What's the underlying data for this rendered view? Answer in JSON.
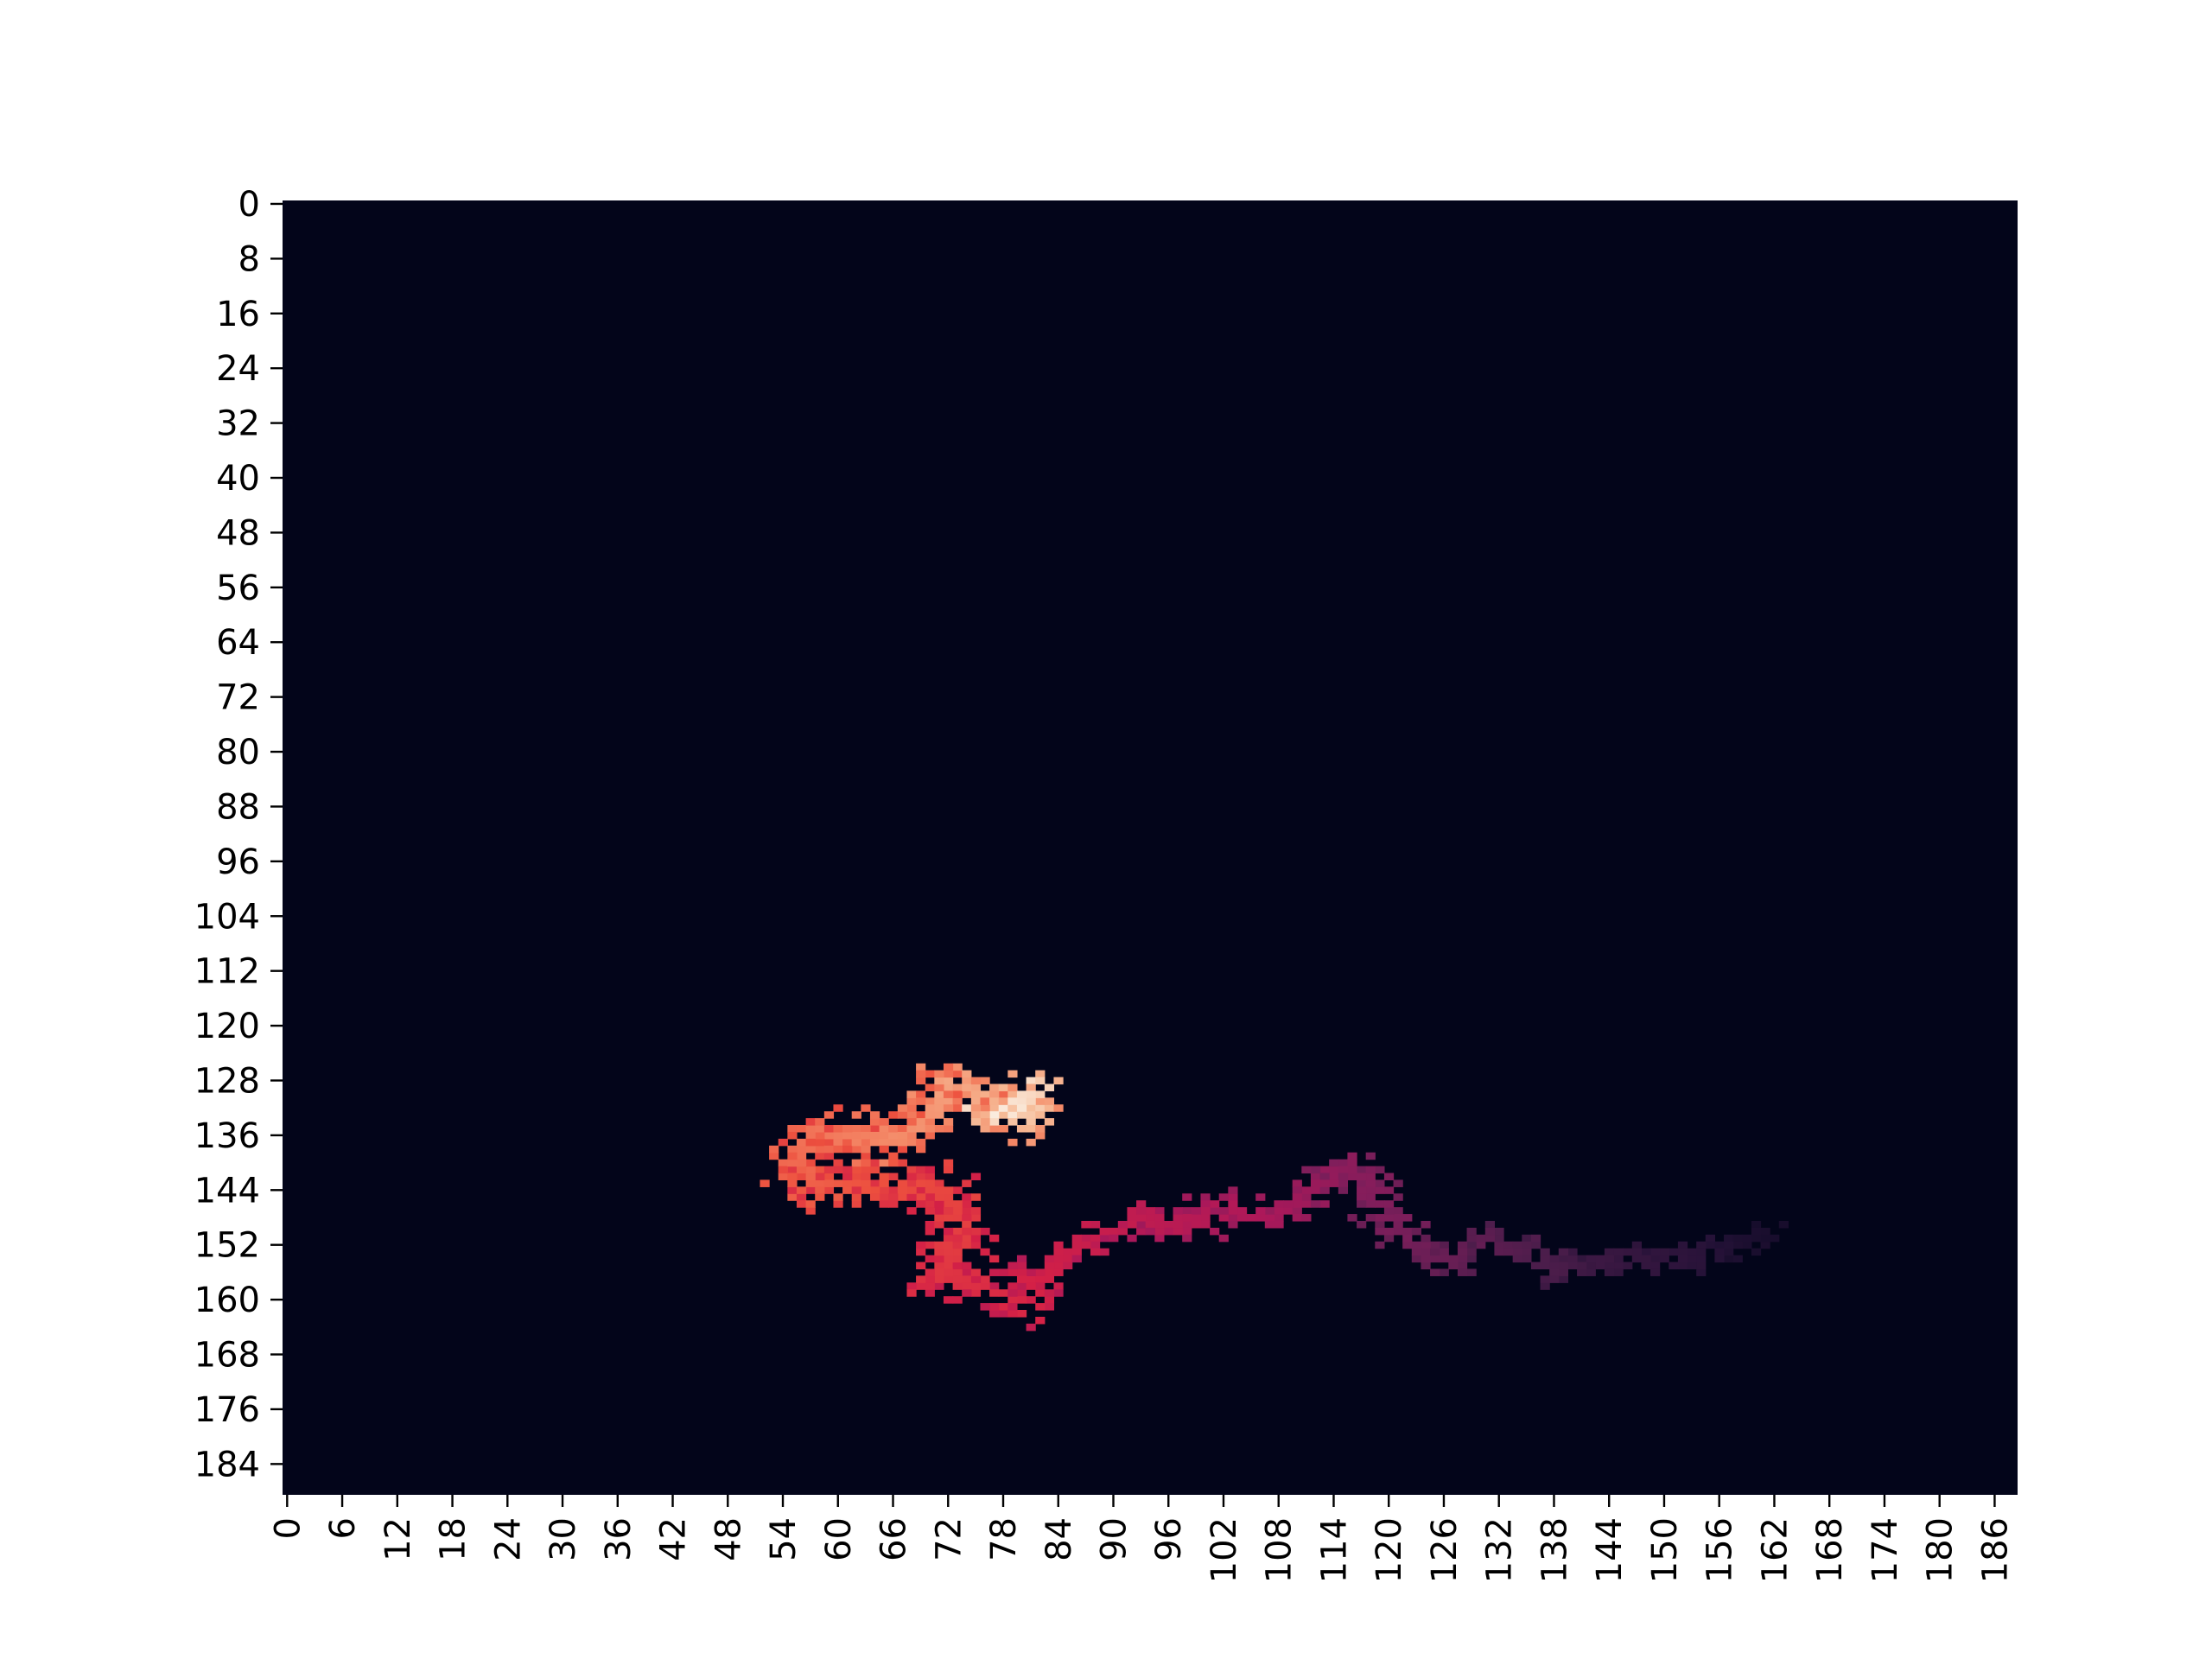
{
  "chart_data": {
    "type": "heatmap",
    "title": "",
    "xlabel": "",
    "ylabel": "",
    "n_rows": 189,
    "n_cols": 189,
    "xlim": [
      0,
      189
    ],
    "ylim": [
      0,
      189
    ],
    "x_tick_labels": [
      "0",
      "6",
      "12",
      "18",
      "24",
      "30",
      "36",
      "42",
      "48",
      "54",
      "60",
      "66",
      "72",
      "78",
      "84",
      "90",
      "96",
      "102",
      "108",
      "114",
      "120",
      "126",
      "132",
      "138",
      "144",
      "150",
      "156",
      "162",
      "168",
      "174",
      "180",
      "186"
    ],
    "y_tick_labels": [
      "0",
      "8",
      "16",
      "24",
      "32",
      "40",
      "48",
      "56",
      "64",
      "72",
      "80",
      "88",
      "96",
      "104",
      "112",
      "120",
      "128",
      "136",
      "144",
      "152",
      "160",
      "168",
      "176",
      "184"
    ],
    "colorbar": false,
    "colormap": "rocket",
    "background_color": "#03051a",
    "value_range": [
      0,
      1
    ],
    "nonzero_path": [
      {
        "col": 162,
        "row": 150,
        "value": 0.08
      },
      {
        "col": 158,
        "row": 152,
        "value": 0.1
      },
      {
        "col": 154,
        "row": 153,
        "value": 0.14
      },
      {
        "col": 148,
        "row": 154,
        "value": 0.17
      },
      {
        "col": 142,
        "row": 155,
        "value": 0.2
      },
      {
        "col": 138,
        "row": 155,
        "value": 0.24
      },
      {
        "col": 134,
        "row": 153,
        "value": 0.27
      },
      {
        "col": 130,
        "row": 151,
        "value": 0.3
      },
      {
        "col": 127,
        "row": 154,
        "value": 0.32
      },
      {
        "col": 124,
        "row": 153,
        "value": 0.34
      },
      {
        "col": 120,
        "row": 149,
        "value": 0.38
      },
      {
        "col": 118,
        "row": 144,
        "value": 0.4
      },
      {
        "col": 116,
        "row": 140,
        "value": 0.42
      },
      {
        "col": 112,
        "row": 143,
        "value": 0.45
      },
      {
        "col": 110,
        "row": 146,
        "value": 0.47
      },
      {
        "col": 106,
        "row": 148,
        "value": 0.5
      },
      {
        "col": 102,
        "row": 147,
        "value": 0.52
      },
      {
        "col": 97,
        "row": 149,
        "value": 0.54
      },
      {
        "col": 92,
        "row": 148,
        "value": 0.56
      },
      {
        "col": 88,
        "row": 151,
        "value": 0.58
      },
      {
        "col": 84,
        "row": 154,
        "value": 0.6
      },
      {
        "col": 82,
        "row": 158,
        "value": 0.62
      },
      {
        "col": 79,
        "row": 161,
        "value": 0.64
      },
      {
        "col": 75,
        "row": 157,
        "value": 0.66
      },
      {
        "col": 71,
        "row": 156,
        "value": 0.68
      },
      {
        "col": 73,
        "row": 150,
        "value": 0.7
      },
      {
        "col": 72,
        "row": 145,
        "value": 0.72
      },
      {
        "col": 66,
        "row": 143,
        "value": 0.74
      },
      {
        "col": 61,
        "row": 144,
        "value": 0.76
      },
      {
        "col": 57,
        "row": 143,
        "value": 0.78
      },
      {
        "col": 55,
        "row": 139,
        "value": 0.8
      },
      {
        "col": 58,
        "row": 135,
        "value": 0.82
      },
      {
        "col": 62,
        "row": 137,
        "value": 0.84
      },
      {
        "col": 66,
        "row": 136,
        "value": 0.86
      },
      {
        "col": 70,
        "row": 133,
        "value": 0.88
      },
      {
        "col": 72,
        "row": 128,
        "value": 0.9
      },
      {
        "col": 76,
        "row": 131,
        "value": 0.92
      },
      {
        "col": 80,
        "row": 134,
        "value": 0.95
      },
      {
        "col": 82,
        "row": 130,
        "value": 0.97
      },
      {
        "col": 78,
        "row": 133,
        "value": 1.0
      }
    ]
  }
}
